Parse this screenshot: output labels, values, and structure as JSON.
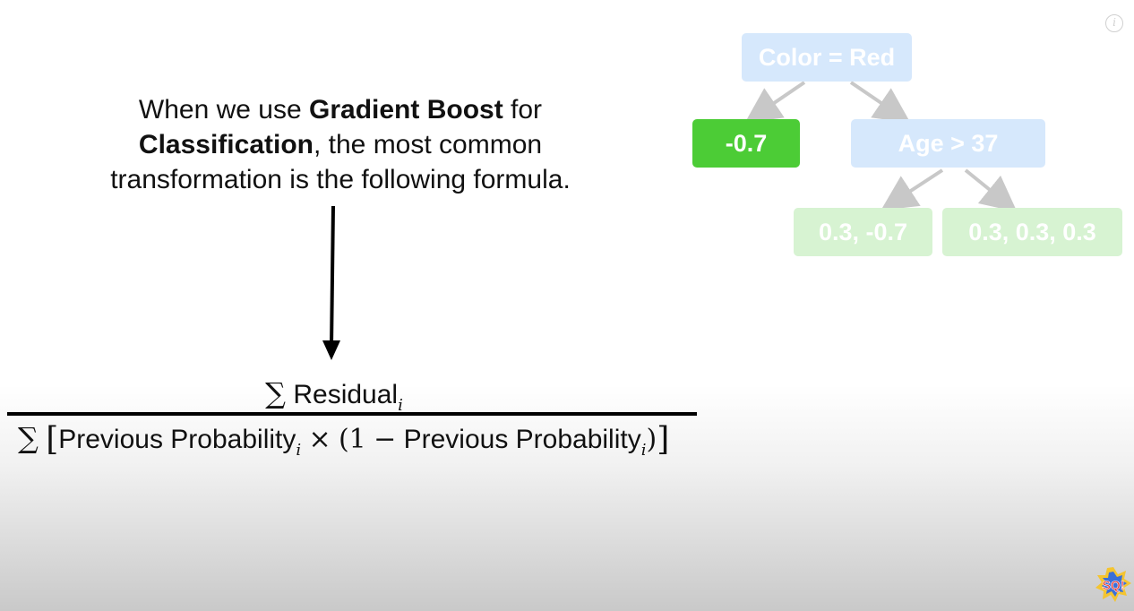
{
  "info": {
    "glyph": "i"
  },
  "caption": {
    "part1": "When we use ",
    "bold1": "Gradient Boost",
    "part2": " for",
    "bold2": "Classification",
    "part3": ", the most common",
    "line3": "transformation is the following formula."
  },
  "formula": {
    "sigma": "∑",
    "numerator_text": "Residual",
    "sub_i": "i",
    "lbracket": "[",
    "prev_prob": "Previous Probability",
    "times": "×",
    "paren_open": "(",
    "one": "1",
    "minus": "−",
    "paren_close": ")",
    "rbracket": "]"
  },
  "tree": {
    "root": "Color = Red",
    "left_leaf": "-0.7",
    "right_node": "Age > 37",
    "right_left_leaf": "0.3, -0.7",
    "right_right_leaf": "0.3, 0.3, 0.3"
  },
  "logo": {
    "text": "SQ!"
  },
  "colors": {
    "blue_node": "#d6e8fc",
    "green_leaf": "#4ccc36",
    "faded_green": "#d7f3d2",
    "edge": "#c8c8c8"
  }
}
